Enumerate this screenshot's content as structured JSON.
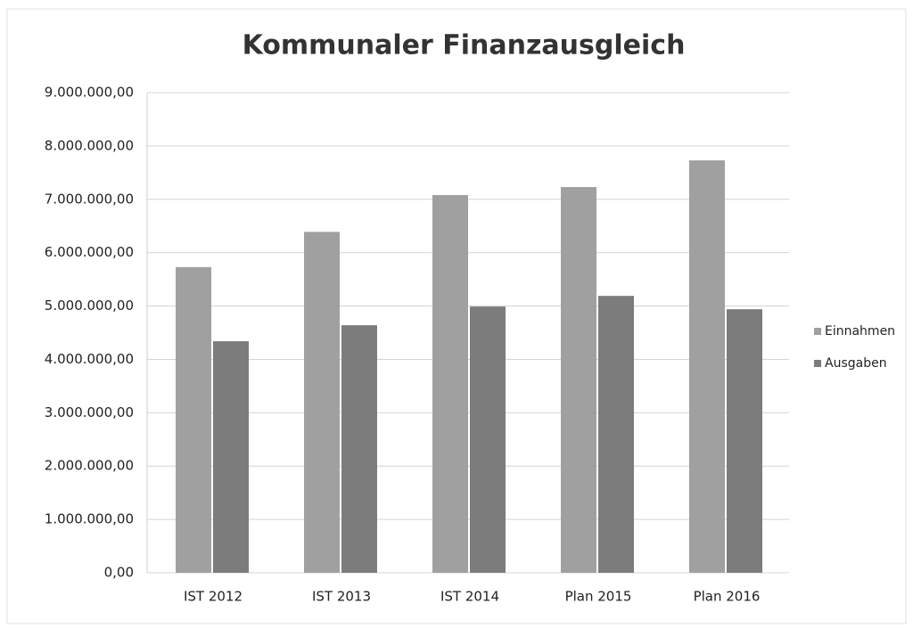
{
  "chart_data": {
    "type": "bar",
    "title": "Kommunaler Finanzausgleich",
    "categories": [
      "IST 2012",
      "IST 2013",
      "IST 2014",
      "Plan 2015",
      "Plan 2016"
    ],
    "series": [
      {
        "name": "Einnahmen",
        "color": "#a0a0a0",
        "values": [
          5730000,
          6390000,
          7080000,
          7230000,
          7730000
        ]
      },
      {
        "name": "Ausgaben",
        "color": "#7c7c7c",
        "values": [
          4340000,
          4640000,
          4990000,
          5190000,
          4940000
        ]
      }
    ],
    "ylim": [
      0,
      9000000
    ],
    "yticks": [
      {
        "value": 0,
        "label": "0,00"
      },
      {
        "value": 1000000,
        "label": "1.000.000,00"
      },
      {
        "value": 2000000,
        "label": "2.000.000,00"
      },
      {
        "value": 3000000,
        "label": "3.000.000,00"
      },
      {
        "value": 4000000,
        "label": "4.000.000,00"
      },
      {
        "value": 5000000,
        "label": "5.000.000,00"
      },
      {
        "value": 6000000,
        "label": "6.000.000,00"
      },
      {
        "value": 7000000,
        "label": "7.000.000,00"
      },
      {
        "value": 8000000,
        "label": "8.000.000,00"
      },
      {
        "value": 9000000,
        "label": "9.000.000,00"
      }
    ],
    "grid": true,
    "legend": "right"
  }
}
